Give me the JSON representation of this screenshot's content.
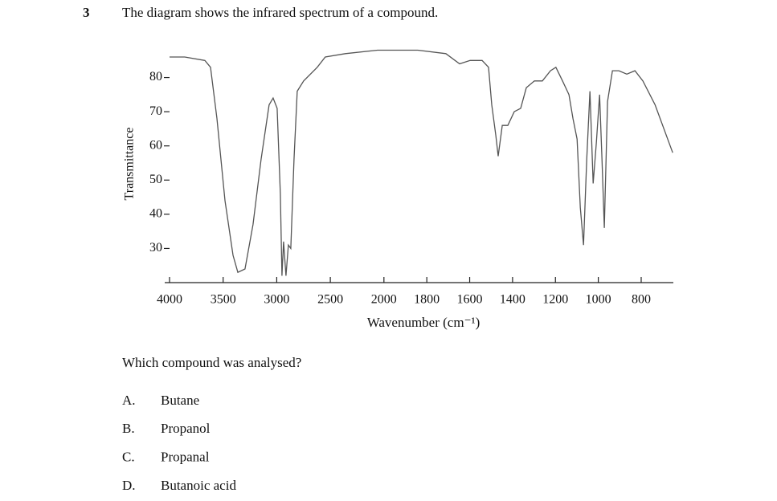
{
  "question": {
    "number": "3",
    "text": "The diagram shows the infrared spectrum of a compound."
  },
  "chart_data": {
    "type": "line",
    "ylabel": "Transmittance",
    "xlabel": "Wavenumber (cm⁻¹)",
    "xlim": [
      4000,
      650
    ],
    "ylim": [
      20,
      90
    ],
    "xticks": [
      4000,
      3500,
      3000,
      2500,
      2000,
      1800,
      1600,
      1400,
      1200,
      1000,
      800
    ],
    "yticks": [
      30,
      40,
      50,
      60,
      70,
      80
    ],
    "x_scale_break": 2000,
    "color": "#555555",
    "x": [
      4000,
      3858,
      3670,
      3618,
      3558,
      3483,
      3408,
      3363,
      3296,
      3221,
      3146,
      3071,
      3034,
      2996,
      2966,
      2951,
      2936,
      2914,
      2891,
      2869,
      2839,
      2809,
      2749,
      2622,
      2547,
      2360,
      2060,
      2000,
      1842,
      1711,
      1647,
      1598,
      1542,
      1512,
      1497,
      1478,
      1467,
      1448,
      1422,
      1392,
      1362,
      1336,
      1298,
      1261,
      1223,
      1198,
      1167,
      1137,
      1118,
      1099,
      1084,
      1069,
      1054,
      1039,
      1024,
      1009,
      994,
      983,
      972,
      957,
      934,
      904,
      867,
      829,
      792,
      735,
      653
    ],
    "values": [
      86,
      86,
      85,
      83,
      68,
      44,
      28,
      23,
      24,
      37,
      56,
      72,
      74,
      71,
      46,
      22,
      32,
      22,
      31,
      30,
      56,
      76,
      79,
      83,
      86,
      87,
      88,
      88,
      88,
      87,
      84,
      85,
      85,
      83,
      72,
      63,
      57,
      66,
      66,
      70,
      71,
      77,
      79,
      79,
      82,
      83,
      79,
      75,
      68,
      62,
      42,
      31,
      56,
      76,
      49,
      61,
      75,
      56,
      36,
      73,
      82,
      82,
      81,
      82,
      79,
      72,
      58
    ]
  },
  "prompt": "Which compound was analysed?",
  "options": [
    {
      "letter": "A.",
      "text": "Butane"
    },
    {
      "letter": "B.",
      "text": "Propanol"
    },
    {
      "letter": "C.",
      "text": "Propanal"
    },
    {
      "letter": "D.",
      "text": "Butanoic acid"
    }
  ]
}
